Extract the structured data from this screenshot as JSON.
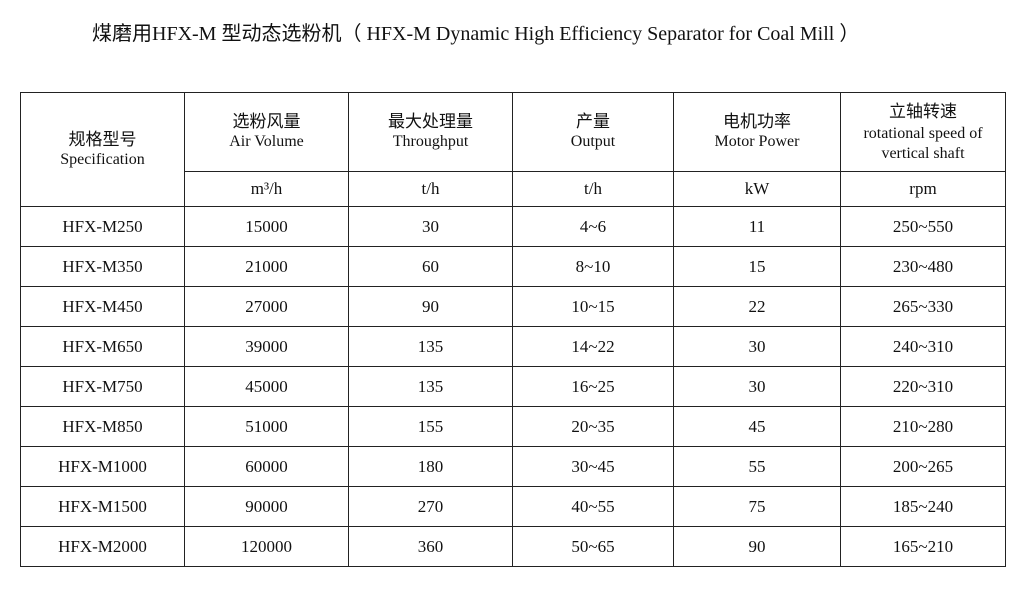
{
  "title": "煤磨用HFX-M 型动态选粉机（ HFX-M Dynamic High Efficiency Separator for Coal Mill ）",
  "headers": [
    {
      "cn": "规格型号",
      "en": "Specification",
      "unit": ""
    },
    {
      "cn": "选粉风量",
      "en": "Air Volume",
      "unit": "m³/h"
    },
    {
      "cn": "最大处理量",
      "en": "Throughput",
      "unit": "t/h"
    },
    {
      "cn": "产量",
      "en": "Output",
      "unit": "t/h"
    },
    {
      "cn": "电机功率",
      "en": "Motor Power",
      "unit": "kW"
    },
    {
      "cn": "立轴转速",
      "en": "rotational speed of",
      "en2": "vertical shaft",
      "unit": "rpm"
    }
  ],
  "rows": [
    [
      "HFX-M250",
      "15000",
      "30",
      "4~6",
      "11",
      "250~550"
    ],
    [
      "HFX-M350",
      "21000",
      "60",
      "8~10",
      "15",
      "230~480"
    ],
    [
      "HFX-M450",
      "27000",
      "90",
      "10~15",
      "22",
      "265~330"
    ],
    [
      "HFX-M650",
      "39000",
      "135",
      "14~22",
      "30",
      "240~310"
    ],
    [
      "HFX-M750",
      "45000",
      "135",
      "16~25",
      "30",
      "220~310"
    ],
    [
      "HFX-M850",
      "51000",
      "155",
      "20~35",
      "45",
      "210~280"
    ],
    [
      "HFX-M1000",
      "60000",
      "180",
      "30~45",
      "55",
      "200~265"
    ],
    [
      "HFX-M1500",
      "90000",
      "270",
      "40~55",
      "75",
      "185~240"
    ],
    [
      "HFX-M2000",
      "120000",
      "360",
      "50~65",
      "90",
      "165~210"
    ]
  ]
}
